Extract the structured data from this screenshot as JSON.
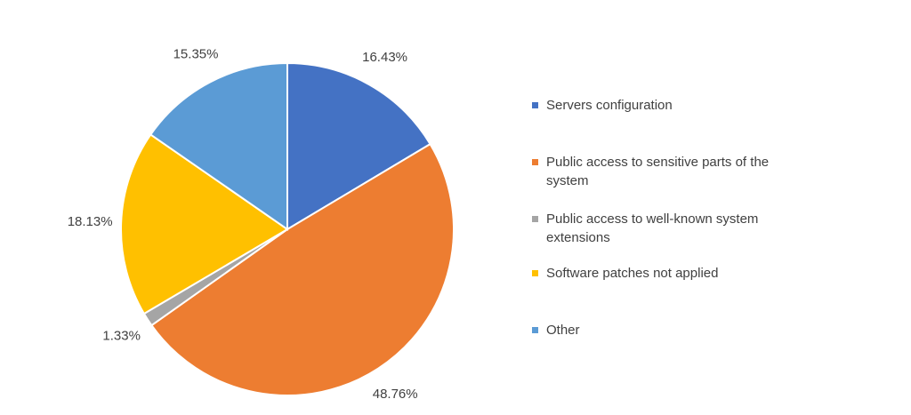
{
  "chart_data": {
    "type": "pie",
    "categories": [
      "Servers configuration",
      "Public access to sensitive parts of the system",
      "Public access to well-known system extensions",
      "Software patches not applied",
      "Other"
    ],
    "values": [
      16.43,
      48.76,
      1.33,
      18.13,
      15.35
    ],
    "value_labels": [
      "16.43%",
      "48.76%",
      "1.33%",
      "18.13%",
      "15.35%"
    ],
    "colors": [
      "#4472c4",
      "#ed7d31",
      "#a5a5a5",
      "#ffc000",
      "#5b9bd5"
    ],
    "legend": "right"
  }
}
